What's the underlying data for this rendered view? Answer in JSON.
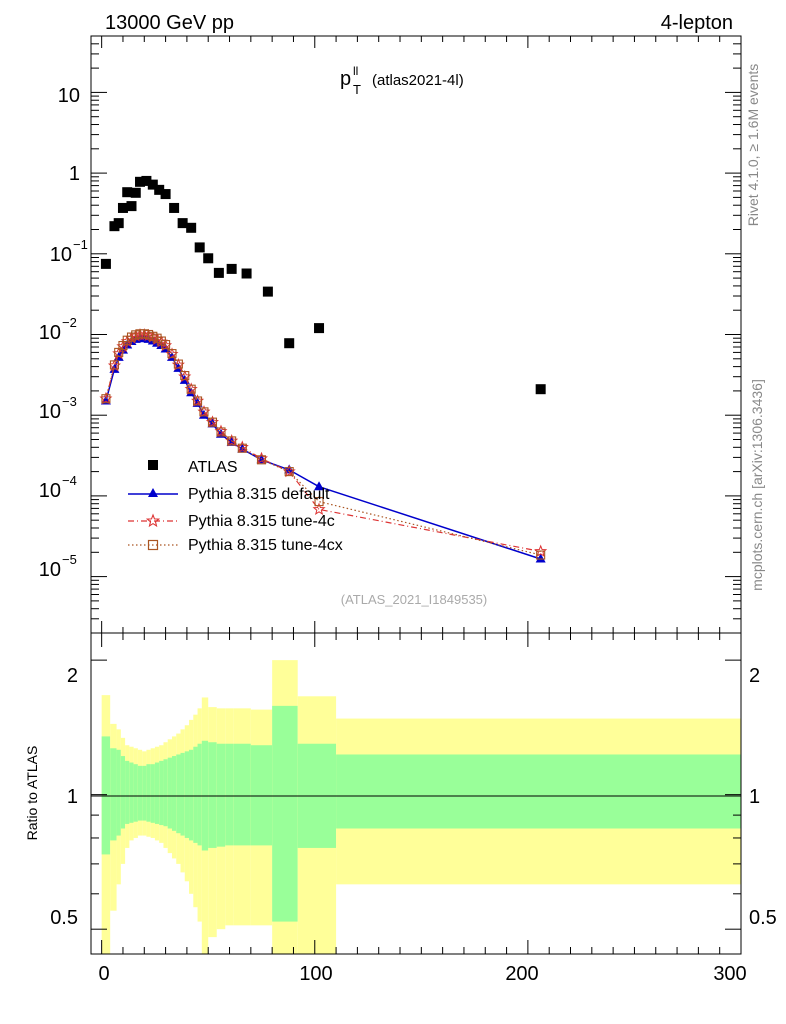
{
  "header": {
    "left": "13000 GeV pp",
    "right": "4-lepton"
  },
  "side_labels": {
    "rivet": "Rivet 4.1.0, ≥ 1.6M events",
    "mcplots": "mcplots.cern.ch [arXiv:1306.3436]"
  },
  "chart_data": [
    {
      "type": "scatter",
      "panel": "main",
      "title": "p",
      "title_superscript": "ll",
      "title_subscript": "T",
      "title_suffix": "(atlas2021-4l)",
      "watermark": "(ATLAS_2021_I1849535)",
      "yscale": "log",
      "xlim": [
        -5,
        300
      ],
      "ylim": [
        2e-06,
        50
      ],
      "ytick_labels": [
        {
          "value": 10,
          "base": "10",
          "exp": ""
        },
        {
          "value": 1,
          "base": "1",
          "exp": ""
        },
        {
          "value": 0.1,
          "base": "10",
          "exp": "−1"
        },
        {
          "value": 0.01,
          "base": "10",
          "exp": "−2"
        },
        {
          "value": 0.001,
          "base": "10",
          "exp": "−3"
        },
        {
          "value": 0.0001,
          "base": "10",
          "exp": "−4"
        },
        {
          "value": 1e-05,
          "base": "10",
          "exp": "−5"
        }
      ],
      "legend": {
        "placement": "lower-left",
        "entries": [
          {
            "label": "ATLAS",
            "series": "atlas"
          },
          {
            "label": "Pythia 8.315 default",
            "series": "default"
          },
          {
            "label": "Pythia 8.315 tune-4c",
            "series": "tune4c"
          },
          {
            "label": "Pythia 8.315 tune-4cx",
            "series": "tune4cx"
          }
        ]
      },
      "series": [
        {
          "name": "ATLAS",
          "id": "atlas",
          "color": "#000000",
          "marker": "square",
          "x": [
            2,
            6,
            8,
            10,
            12,
            14,
            16,
            18,
            21,
            24,
            27,
            30,
            34,
            38,
            42,
            46,
            50,
            55,
            61,
            68,
            78,
            88,
            102,
            206
          ],
          "y": [
            0.075,
            0.22,
            0.24,
            0.37,
            0.58,
            0.39,
            0.57,
            0.78,
            0.8,
            0.72,
            0.62,
            0.55,
            0.37,
            0.24,
            0.21,
            0.12,
            0.088,
            0.058,
            0.065,
            0.057,
            0.034,
            0.0078,
            0.012,
            0.0021
          ]
        },
        {
          "name": "Pythia 8.315 default",
          "id": "default",
          "color": "#0000cc",
          "marker": "triangle",
          "line": "solid",
          "x": [
            2,
            6,
            8,
            10,
            12,
            14,
            16,
            18,
            20,
            22,
            24,
            26,
            28,
            30,
            33,
            36,
            39,
            42,
            45,
            48,
            52,
            56,
            61,
            66,
            75,
            88,
            102,
            206
          ],
          "y": [
            0.0015,
            0.0037,
            0.0052,
            0.0064,
            0.0074,
            0.0082,
            0.0087,
            0.0089,
            0.0089,
            0.0087,
            0.0083,
            0.0078,
            0.0073,
            0.0066,
            0.0052,
            0.0038,
            0.0027,
            0.0019,
            0.0014,
            0.001,
            0.00078,
            0.00058,
            0.00046,
            0.00038,
            0.00028,
            0.00021,
            0.00013,
            1.65e-05
          ]
        },
        {
          "name": "Pythia 8.315 tune-4c",
          "id": "tune4c",
          "color": "#dd3333",
          "marker": "star",
          "line": "dash-dot",
          "x": [
            2,
            6,
            8,
            10,
            12,
            14,
            16,
            18,
            20,
            22,
            24,
            26,
            28,
            30,
            33,
            36,
            39,
            42,
            45,
            48,
            52,
            56,
            61,
            66,
            75,
            88,
            102,
            206
          ],
          "y": [
            0.0016,
            0.0041,
            0.0058,
            0.0071,
            0.0082,
            0.009,
            0.0096,
            0.0099,
            0.0099,
            0.0097,
            0.0093,
            0.0087,
            0.0081,
            0.0073,
            0.0057,
            0.0042,
            0.003,
            0.0021,
            0.0015,
            0.0011,
            0.00082,
            0.00063,
            0.00048,
            0.0004,
            0.00029,
            0.0002,
            6.8e-05,
            2.05e-05
          ]
        },
        {
          "name": "Pythia 8.315 tune-4cx",
          "id": "tune4cx",
          "color": "#aa5522",
          "marker": "open-square",
          "line": "dotted",
          "x": [
            2,
            6,
            8,
            10,
            12,
            14,
            16,
            18,
            20,
            22,
            24,
            26,
            28,
            30,
            33,
            36,
            39,
            42,
            45,
            48,
            52,
            56,
            61,
            66,
            75,
            88,
            102,
            206
          ],
          "y": [
            0.0016,
            0.0042,
            0.006,
            0.0073,
            0.0085,
            0.0093,
            0.0099,
            0.0102,
            0.0102,
            0.01,
            0.0095,
            0.009,
            0.0083,
            0.0075,
            0.0058,
            0.0043,
            0.0031,
            0.0021,
            0.0015,
            0.0011,
            0.00082,
            0.00062,
            0.00048,
            0.00039,
            0.00028,
            0.0002,
            8.5e-05,
            1.85e-05
          ]
        }
      ]
    },
    {
      "type": "area",
      "panel": "ratio",
      "ylabel": "Ratio to ATLAS",
      "yscale": "log",
      "xlim": [
        -5,
        300
      ],
      "ylim": [
        0.44,
        2.3
      ],
      "ytick_labels": [
        {
          "value": 2,
          "label": "2"
        },
        {
          "value": 1,
          "label": "1"
        },
        {
          "value": 0.5,
          "label": "0.5"
        }
      ],
      "xtick_labels": [
        {
          "value": 0,
          "label": "0"
        },
        {
          "value": 100,
          "label": "100"
        },
        {
          "value": 200,
          "label": "200"
        },
        {
          "value": 300,
          "label": "300"
        }
      ],
      "reference_line": 1,
      "band_colors": {
        "stat": "#99ff99",
        "total": "#ffff99"
      },
      "bins": [
        {
          "lo": 0,
          "hi": 4,
          "stat": [
            0.735,
            1.35
          ],
          "total": [
            0.3,
            1.67
          ]
        },
        {
          "lo": 4,
          "hi": 7,
          "stat": [
            0.79,
            1.27
          ],
          "total": [
            0.55,
            1.44
          ]
        },
        {
          "lo": 7,
          "hi": 9,
          "stat": [
            0.81,
            1.26
          ],
          "total": [
            0.63,
            1.4
          ]
        },
        {
          "lo": 9,
          "hi": 11,
          "stat": [
            0.84,
            1.22
          ],
          "total": [
            0.7,
            1.34
          ]
        },
        {
          "lo": 11,
          "hi": 13,
          "stat": [
            0.86,
            1.19
          ],
          "total": [
            0.76,
            1.29
          ]
        },
        {
          "lo": 13,
          "hi": 15,
          "stat": [
            0.865,
            1.18
          ],
          "total": [
            0.79,
            1.28
          ]
        },
        {
          "lo": 15,
          "hi": 17,
          "stat": [
            0.87,
            1.17
          ],
          "total": [
            0.8,
            1.27
          ]
        },
        {
          "lo": 17,
          "hi": 19,
          "stat": [
            0.875,
            1.16
          ],
          "total": [
            0.81,
            1.26
          ]
        },
        {
          "lo": 19,
          "hi": 21,
          "stat": [
            0.875,
            1.16
          ],
          "total": [
            0.81,
            1.25
          ]
        },
        {
          "lo": 21,
          "hi": 23,
          "stat": [
            0.87,
            1.17
          ],
          "total": [
            0.805,
            1.26
          ]
        },
        {
          "lo": 23,
          "hi": 25,
          "stat": [
            0.865,
            1.17
          ],
          "total": [
            0.8,
            1.27
          ]
        },
        {
          "lo": 25,
          "hi": 27,
          "stat": [
            0.86,
            1.18
          ],
          "total": [
            0.79,
            1.28
          ]
        },
        {
          "lo": 27,
          "hi": 29,
          "stat": [
            0.855,
            1.19
          ],
          "total": [
            0.78,
            1.29
          ]
        },
        {
          "lo": 29,
          "hi": 31,
          "stat": [
            0.85,
            1.2
          ],
          "total": [
            0.76,
            1.31
          ]
        },
        {
          "lo": 31,
          "hi": 33,
          "stat": [
            0.84,
            1.21
          ],
          "total": [
            0.74,
            1.33
          ]
        },
        {
          "lo": 33,
          "hi": 35,
          "stat": [
            0.83,
            1.22
          ],
          "total": [
            0.72,
            1.35
          ]
        },
        {
          "lo": 35,
          "hi": 37,
          "stat": [
            0.82,
            1.23
          ],
          "total": [
            0.7,
            1.37
          ]
        },
        {
          "lo": 37,
          "hi": 39,
          "stat": [
            0.81,
            1.24
          ],
          "total": [
            0.67,
            1.4
          ]
        },
        {
          "lo": 39,
          "hi": 41,
          "stat": [
            0.8,
            1.25
          ],
          "total": [
            0.64,
            1.43
          ]
        },
        {
          "lo": 41,
          "hi": 43,
          "stat": [
            0.79,
            1.26
          ],
          "total": [
            0.6,
            1.47
          ]
        },
        {
          "lo": 43,
          "hi": 45,
          "stat": [
            0.78,
            1.28
          ],
          "total": [
            0.56,
            1.51
          ]
        },
        {
          "lo": 45,
          "hi": 47,
          "stat": [
            0.77,
            1.3
          ],
          "total": [
            0.52,
            1.56
          ]
        },
        {
          "lo": 47,
          "hi": 50,
          "stat": [
            0.75,
            1.32
          ],
          "total": [
            0.42,
            1.65
          ]
        },
        {
          "lo": 50,
          "hi": 54,
          "stat": [
            0.76,
            1.31
          ],
          "total": [
            0.48,
            1.57
          ]
        },
        {
          "lo": 54,
          "hi": 58,
          "stat": [
            0.765,
            1.3
          ],
          "total": [
            0.5,
            1.56
          ]
        },
        {
          "lo": 58,
          "hi": 62,
          "stat": [
            0.77,
            1.3
          ],
          "total": [
            0.51,
            1.56
          ]
        },
        {
          "lo": 62,
          "hi": 70,
          "stat": [
            0.77,
            1.3
          ],
          "total": [
            0.51,
            1.56
          ]
        },
        {
          "lo": 70,
          "hi": 80,
          "stat": [
            0.77,
            1.29
          ],
          "total": [
            0.51,
            1.55
          ]
        },
        {
          "lo": 80,
          "hi": 92,
          "stat": [
            0.52,
            1.58
          ],
          "total": [
            0.42,
            2.0
          ]
        },
        {
          "lo": 92,
          "hi": 110,
          "stat": [
            0.76,
            1.3
          ],
          "total": [
            0.42,
            1.66
          ]
        },
        {
          "lo": 110,
          "hi": 300,
          "stat": [
            0.84,
            1.23
          ],
          "total": [
            0.63,
            1.48
          ]
        }
      ]
    }
  ]
}
